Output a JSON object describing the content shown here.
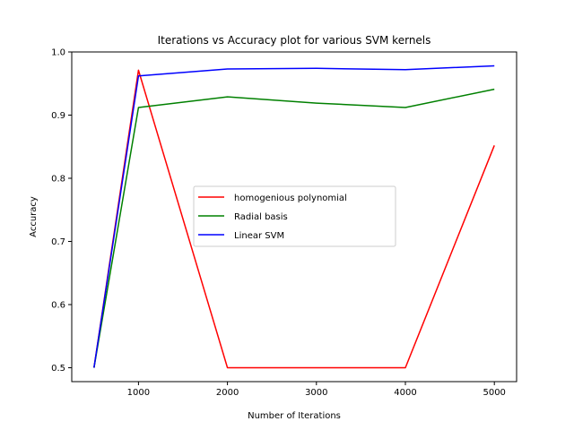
{
  "chart_data": {
    "type": "line",
    "title": "Iterations vs Accuracy plot for various SVM kernels",
    "xlabel": "Number of Iterations",
    "ylabel": "Accuracy",
    "xlim": [
      250,
      5250
    ],
    "ylim": [
      0.478,
      1.0
    ],
    "xticks": [
      1000,
      2000,
      3000,
      4000,
      5000
    ],
    "xtick_labels": [
      "1000",
      "2000",
      "3000",
      "4000",
      "5000"
    ],
    "yticks": [
      0.5,
      0.6,
      0.7,
      0.8,
      0.9,
      1.0
    ],
    "ytick_labels": [
      "0.5",
      "0.6",
      "0.7",
      "0.8",
      "0.9",
      "1.0"
    ],
    "grid": false,
    "legend_position": "center-right",
    "x": [
      500,
      1000,
      2000,
      3000,
      4000,
      5000
    ],
    "series": [
      {
        "name": "homogenious polynomial",
        "color": "#ff0000",
        "values": [
          0.5,
          0.971,
          0.5,
          0.5,
          0.5,
          0.852
        ]
      },
      {
        "name": "Radial basis",
        "color": "#008000",
        "values": [
          0.5,
          0.912,
          0.929,
          0.919,
          0.912,
          0.941
        ]
      },
      {
        "name": "Linear SVM",
        "color": "#0000ff",
        "values": [
          0.5,
          0.962,
          0.973,
          0.974,
          0.972,
          0.978
        ]
      }
    ]
  }
}
